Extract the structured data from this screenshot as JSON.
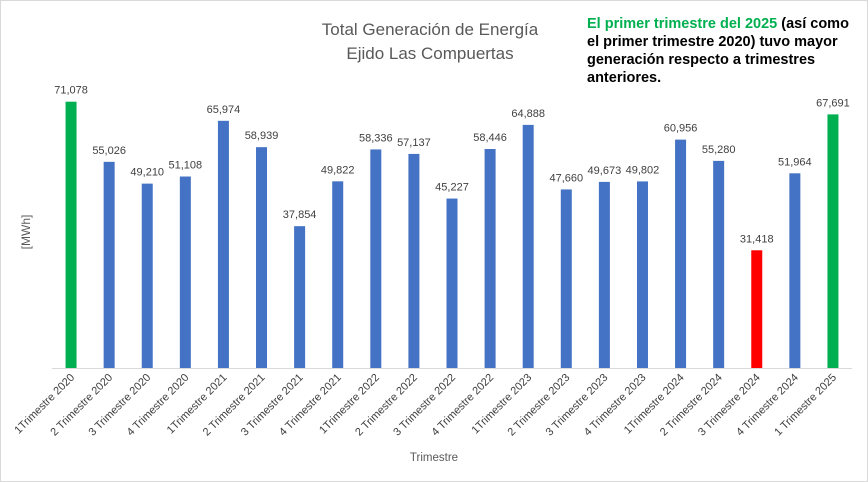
{
  "chart_data": {
    "type": "bar",
    "title_line1": "Total Generación de Energía",
    "title_line2": "Ejido Las Compuertas",
    "xlabel": "Trimestre",
    "ylabel": "[MWh]",
    "ylim": [
      0,
      75000
    ],
    "grid": false,
    "categories": [
      "1Trimestre 2020",
      "2 Trimestre 2020",
      "3 Trimestre 2020",
      "4 Trimestre 2020",
      "1Trimestre 2021",
      "2 Trimestre 2021",
      "3 Trimestre 2021",
      "4 Trimestre 2021",
      "1Trimestre 2022",
      "2 Trimestre 2022",
      "3 Trimestre 2022",
      "4 Trimestre 2022",
      "1Trimestre 2023",
      "2 Trimestre 2023",
      "3 Trimestre 2023",
      "4 Trimestre 2023",
      "1Trimestre 2024",
      "2 Trimestre 2024",
      "3 Trimestre 2024",
      "4 Trimestre 2024",
      "1 Trimestre 2025"
    ],
    "values": [
      71078,
      55026,
      49210,
      51108,
      65974,
      58939,
      37854,
      49822,
      58336,
      57137,
      45227,
      58446,
      64888,
      47660,
      49673,
      49802,
      60956,
      55280,
      31418,
      51964,
      67691
    ],
    "data_labels": [
      "71,078",
      "55,026",
      "49,210",
      "51,108",
      "65,974",
      "58,939",
      "37,854",
      "49,822",
      "58,336",
      "57,137",
      "45,227",
      "58,446",
      "64,888",
      "47,660",
      "49,673",
      "49,802",
      "60,956",
      "55,280",
      "31,418",
      "51,964",
      "67,691"
    ],
    "bar_colors": [
      "#00b050",
      "#4472c4",
      "#4472c4",
      "#4472c4",
      "#4472c4",
      "#4472c4",
      "#4472c4",
      "#4472c4",
      "#4472c4",
      "#4472c4",
      "#4472c4",
      "#4472c4",
      "#4472c4",
      "#4472c4",
      "#4472c4",
      "#4472c4",
      "#4472c4",
      "#4472c4",
      "#ff0000",
      "#4472c4",
      "#00b050"
    ]
  },
  "annotation": {
    "highlight": "El primer trimestre del 2025",
    "rest": " (así como el primer trimestre 2020) tuvo mayor  generación respecto a trimestres anteriores."
  },
  "colors": {
    "axis": "#d9d9d9",
    "text": "#404040",
    "highlight": "#00b050"
  }
}
